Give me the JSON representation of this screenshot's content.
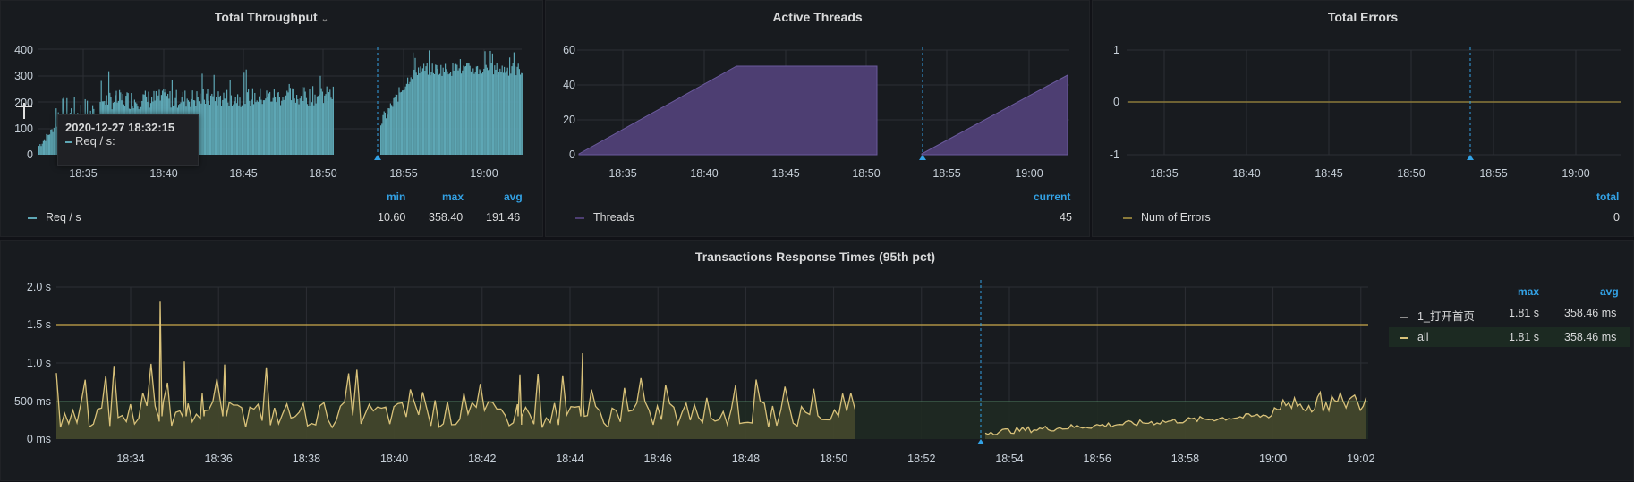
{
  "panels": {
    "throughput": {
      "title": "Total Throughput",
      "caret": "⌄",
      "y_ticks": [
        "400",
        "300",
        "200",
        "100",
        "0"
      ],
      "x_ticks": [
        "18:35",
        "18:40",
        "18:45",
        "18:50",
        "18:55",
        "19:00"
      ],
      "legend_headers": [
        "min",
        "max",
        "avg"
      ],
      "series_name": "Req / s",
      "min": "10.60",
      "max": "358.40",
      "avg": "191.46",
      "color": "#5ea7b5",
      "tooltip": {
        "time": "2020-12-27 18:32:15",
        "label": "Req / s:"
      }
    },
    "threads": {
      "title": "Active Threads",
      "y_ticks": [
        "60",
        "40",
        "20",
        "0"
      ],
      "x_ticks": [
        "18:35",
        "18:40",
        "18:45",
        "18:50",
        "18:55",
        "19:00"
      ],
      "legend_headers": [
        "current"
      ],
      "series_name": "Threads",
      "current": "45",
      "color": "#4d3e72"
    },
    "errors": {
      "title": "Total Errors",
      "y_ticks": [
        "1",
        "0",
        "-1"
      ],
      "x_ticks": [
        "18:35",
        "18:40",
        "18:45",
        "18:50",
        "18:55",
        "19:00"
      ],
      "legend_headers": [
        "total"
      ],
      "series_name": "Num of Errors",
      "total": "0",
      "color": "#8a7a3a"
    },
    "response": {
      "title": "Transactions Response Times (95th pct)",
      "y_ticks": [
        "2.0 s",
        "1.5 s",
        "1.0 s",
        "500 ms",
        "0 ms"
      ],
      "x_ticks": [
        "18:34",
        "18:36",
        "18:38",
        "18:40",
        "18:42",
        "18:44",
        "18:46",
        "18:48",
        "18:50",
        "18:52",
        "18:54",
        "18:56",
        "18:58",
        "19:00",
        "19:02"
      ],
      "legend_headers": [
        "max",
        "avg"
      ],
      "series": [
        {
          "name": "1_打开首页",
          "max": "1.81 s",
          "avg": "358.46 ms",
          "color": "#8e8e8e"
        },
        {
          "name": "all",
          "max": "1.81 s",
          "avg": "358.46 ms",
          "color": "#d9c27a"
        }
      ],
      "thresholds": {
        "warning": "1.5 s",
        "ok": "500 ms"
      }
    }
  }
}
